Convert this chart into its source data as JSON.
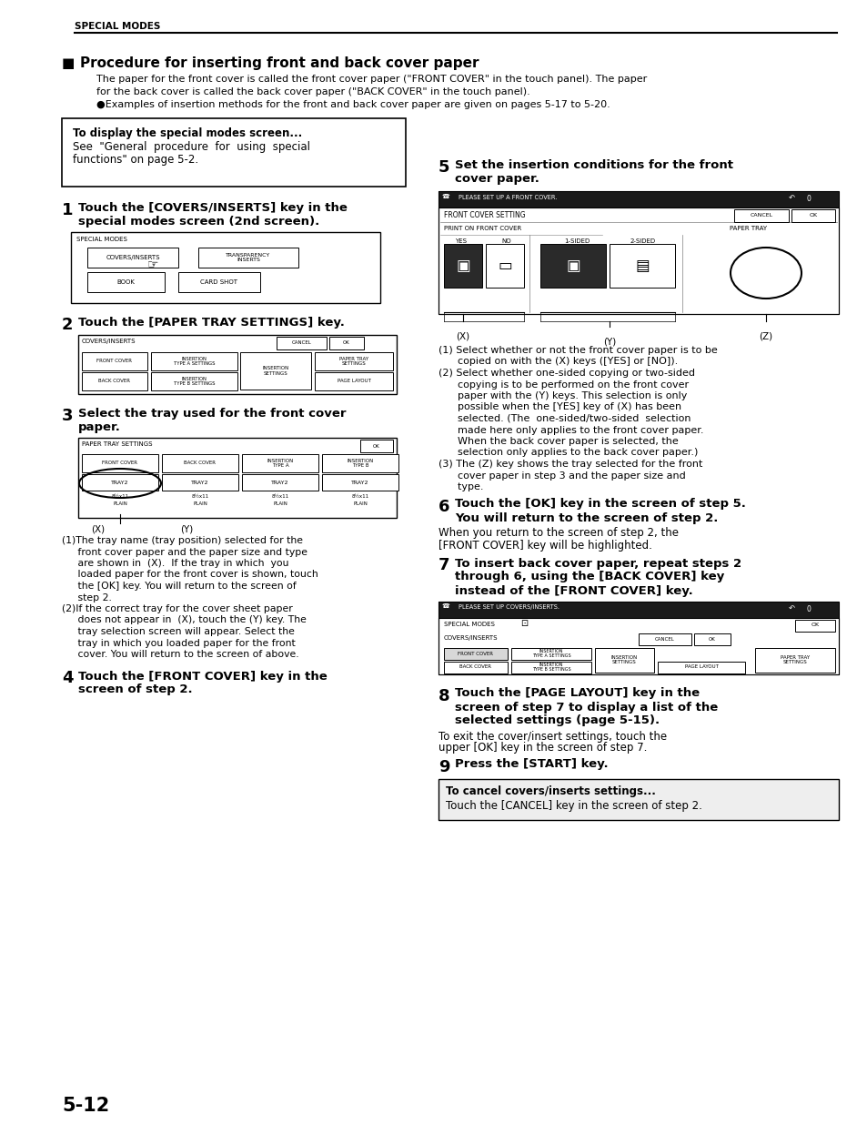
{
  "bg_color": "#ffffff",
  "header_text": "SPECIAL MODES",
  "page_number": "5-12",
  "title": "Procedure for inserting front and back cover paper",
  "intro1": "The paper for the front cover is called the front cover paper (\"FRONT COVER\" in the touch panel). The paper",
  "intro2": "for the back cover is called the back cover paper (\"BACK COVER\" in the touch panel).",
  "intro3": "●Examples of insertion methods for the front and back cover paper are given on pages 5-17 to 5-20.",
  "box1": "To display the special modes screen...",
  "box2": "See  \"General  procedure  for  using  special",
  "box3": "functions\" on page 5-2.",
  "s1h1": "Touch the [COVERS/INSERTS] key in the",
  "s1h2": "special modes screen (2nd screen).",
  "s2h1": "Touch the [PAPER TRAY SETTINGS] key.",
  "s3h1": "Select the tray used for the front cover",
  "s3h2": "paper.",
  "s3n1a": "(1)The tray name (tray position) selected for the",
  "s3n1b": "     front cover paper and the paper size and type",
  "s3n1c": "     are shown in  (X).  If the tray in which  you",
  "s3n1d": "     loaded paper for the front cover is shown, touch",
  "s3n1e": "     the [OK] key. You will return to the screen of",
  "s3n1f": "     step 2.",
  "s3n2a": "(2)If the correct tray for the cover sheet paper",
  "s3n2b": "     does not appear in  (X), touch the (Y) key. The",
  "s3n2c": "     tray selection screen will appear. Select the",
  "s3n2d": "     tray in which you loaded paper for the front",
  "s3n2e": "     cover. You will return to the screen of above.",
  "s4h1": "Touch the [FRONT COVER] key in the",
  "s4h2": "screen of step 2.",
  "s5h1": "Set the insertion conditions for the front",
  "s5h2": "cover paper.",
  "s5n1a": "(1) Select whether or not the front cover paper is to be",
  "s5n1b": "      copied on with the (X) keys ([YES] or [NO]).",
  "s5n2a": "(2) Select whether one-sided copying or two-sided",
  "s5n2b": "      copying is to be performed on the front cover",
  "s5n2c": "      paper with the (Y) keys. This selection is only",
  "s5n2d": "      possible when the [YES] key of (X) has been",
  "s5n2e": "      selected. (The  one-sided/two-sided  selection",
  "s5n2f": "      made here only applies to the front cover paper.",
  "s5n2g": "      When the back cover paper is selected, the",
  "s5n2h": "      selection only applies to the back cover paper.)",
  "s5n3a": "(3) The (Z) key shows the tray selected for the front",
  "s5n3b": "      cover paper in step 3 and the paper size and",
  "s5n3c": "      type.",
  "s6h1": "Touch the [OK] key in the screen of step 5.",
  "s6h2": "You will return to the screen of step 2.",
  "s6b1": "When you return to the screen of step 2, the",
  "s6b2": "[FRONT COVER] key will be highlighted.",
  "s7h1": "To insert back cover paper, repeat steps 2",
  "s7h2": "through 6, using the [BACK COVER] key",
  "s7h3": "instead of the [FRONT COVER] key.",
  "s8h1": "Touch the [PAGE LAYOUT] key in the",
  "s8h2": "screen of step 7 to display a list of the",
  "s8h3": "selected settings (page 5-15).",
  "s8b1": "To exit the cover/insert settings, touch the",
  "s8b2": "upper [OK] key in the screen of step 7.",
  "s9h1": "Press the [START] key.",
  "cb1": "To cancel covers/inserts settings...",
  "cb2": "Touch the [CANCEL] key in the screen of step 2."
}
